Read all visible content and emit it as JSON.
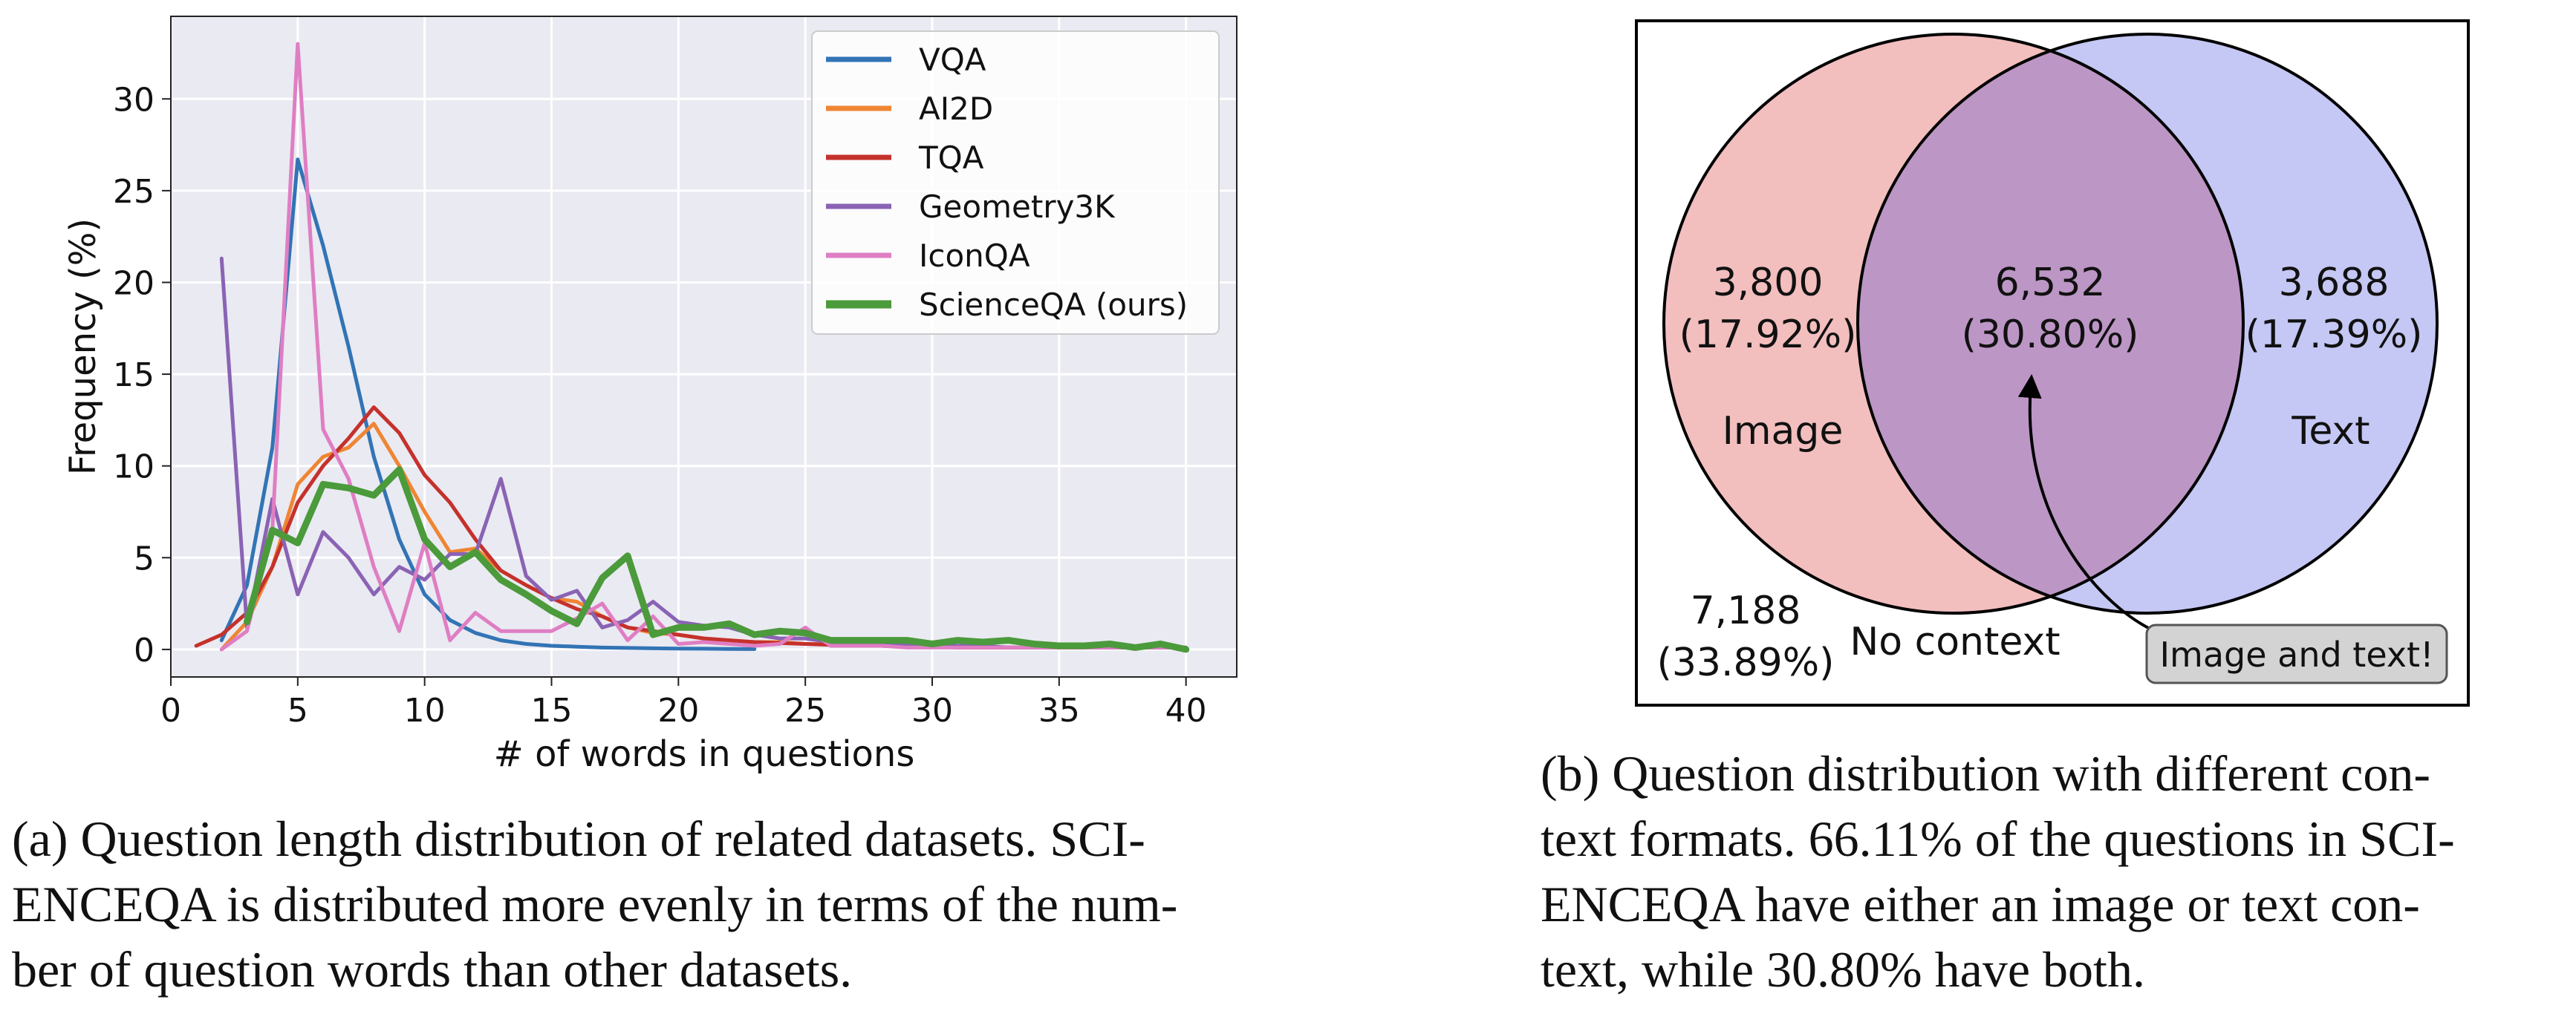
{
  "figure_a": {
    "caption_lines": [
      "(a) Question length distribution of related datasets. SCI-",
      "ENCEQA is distributed more evenly in terms of the num-",
      "ber of question words than other datasets."
    ]
  },
  "figure_b": {
    "caption_lines": [
      "(b) Question distribution with different con-",
      "text formats. 66.11% of the questions in SCI-",
      "ENCEQA have either an image or text con-",
      "text, while 30.80% have both."
    ]
  },
  "chart_data": [
    {
      "type": "line",
      "xlabel": "# of words in questions",
      "ylabel": "Frequency (%)",
      "xlim": [
        0,
        42
      ],
      "ylim": [
        -1.5,
        34.5
      ],
      "xticks": [
        0,
        5,
        10,
        15,
        20,
        25,
        30,
        35,
        40
      ],
      "yticks": [
        0,
        5,
        10,
        15,
        20,
        25,
        30
      ],
      "grid": true,
      "legend_position": "top-right",
      "series": [
        {
          "name": "VQA",
          "color": "#3274b5",
          "width": 5,
          "x": [
            2,
            3,
            4,
            5,
            6,
            7,
            8,
            9,
            10,
            11,
            12,
            13,
            14,
            15,
            16,
            17,
            18,
            19,
            20,
            21,
            22,
            23
          ],
          "y": [
            0.5,
            3.5,
            11,
            26.7,
            22,
            16.5,
            10.5,
            6,
            3,
            1.6,
            0.9,
            0.5,
            0.3,
            0.2,
            0.15,
            0.1,
            0.08,
            0.06,
            0.05,
            0.04,
            0.03,
            0.02
          ]
        },
        {
          "name": "AI2D",
          "color": "#ef8533",
          "width": 5,
          "x": [
            2,
            3,
            4,
            5,
            6,
            7,
            8,
            9,
            10,
            11,
            12,
            13,
            14,
            15,
            16,
            17,
            18,
            19,
            20,
            21,
            22,
            23,
            24,
            25,
            26,
            27,
            28,
            29,
            30,
            31,
            32,
            33,
            34,
            35,
            36,
            37,
            38,
            39,
            40
          ],
          "y": [
            0,
            1.5,
            4.5,
            9,
            10.5,
            11,
            12.3,
            10,
            7.5,
            5.3,
            5.5,
            4.3,
            3.5,
            2.8,
            2.6,
            1.8,
            1.2,
            0.9,
            0.8,
            0.6,
            0.5,
            0.4,
            0.4,
            0.3,
            0.3,
            0.2,
            0.2,
            0.2,
            0.2,
            0.1,
            0.1,
            0.1,
            0.1,
            0.1,
            0.1,
            0.1,
            0.1,
            0.1,
            0.1
          ]
        },
        {
          "name": "TQA",
          "color": "#c5312c",
          "width": 5,
          "x": [
            1,
            2,
            3,
            4,
            5,
            6,
            7,
            8,
            9,
            10,
            11,
            12,
            13,
            14,
            15,
            16,
            17,
            18,
            19,
            20,
            21,
            22,
            23,
            24,
            25,
            26,
            27,
            28,
            29,
            30,
            31,
            32,
            33,
            34,
            35,
            36,
            37,
            38,
            39,
            40
          ],
          "y": [
            0.2,
            0.8,
            2,
            4.5,
            8,
            10,
            11.5,
            13.2,
            11.8,
            9.5,
            8,
            6,
            4.3,
            3.5,
            2.8,
            2.2,
            1.8,
            1.2,
            1,
            0.8,
            0.6,
            0.5,
            0.4,
            0.35,
            0.3,
            0.25,
            0.2,
            0.2,
            0.15,
            0.15,
            0.1,
            0.1,
            0.1,
            0.1,
            0.1,
            0.1,
            0.1,
            0.1,
            0.1,
            0.1
          ]
        },
        {
          "name": "Geometry3K",
          "color": "#8a63b4",
          "width": 5,
          "x": [
            2,
            3,
            4,
            5,
            6,
            7,
            8,
            9,
            10,
            11,
            12,
            13,
            14,
            15,
            16,
            17,
            18,
            19,
            20,
            21,
            22,
            23,
            24,
            25,
            26,
            27,
            28,
            29,
            30,
            31,
            32,
            33,
            34,
            35,
            36,
            37,
            38,
            39,
            40
          ],
          "y": [
            21.3,
            1.2,
            8.2,
            3,
            6.4,
            5,
            3,
            4.5,
            3.8,
            5.2,
            5.2,
            9.3,
            4,
            2.7,
            3.2,
            1.2,
            1.6,
            2.6,
            1.5,
            1.3,
            1.2,
            0.8,
            0.6,
            0.6,
            0.4,
            0.3,
            0.3,
            0.3,
            0.2,
            0.2,
            0.2,
            0.1,
            0.1,
            0.1,
            0.1,
            0.1,
            0.1,
            0.1,
            0.1
          ]
        },
        {
          "name": "IconQA",
          "color": "#df7ec3",
          "width": 5,
          "x": [
            2,
            3,
            4,
            5,
            6,
            7,
            8,
            9,
            10,
            11,
            12,
            13,
            14,
            15,
            16,
            17,
            18,
            19,
            20,
            21,
            22,
            23,
            24,
            25,
            26,
            27,
            28,
            29,
            30,
            31,
            32,
            33,
            34,
            35,
            36,
            37,
            38,
            39,
            40
          ],
          "y": [
            0,
            1,
            6.5,
            33,
            12,
            9.3,
            4.5,
            1,
            5.8,
            0.5,
            2,
            1,
            1,
            1,
            1.7,
            2.5,
            0.5,
            1.8,
            0.3,
            0.4,
            0.3,
            0.2,
            0.3,
            1.2,
            0.2,
            0.2,
            0.2,
            0.1,
            0.1,
            0.1,
            0.1,
            0.1,
            0.1,
            0.1,
            0.1,
            0.1,
            0.1,
            0.1,
            0.1
          ]
        },
        {
          "name": "ScienceQA (ours)",
          "color": "#4b9a3b",
          "width": 9,
          "x": [
            3,
            4,
            5,
            6,
            7,
            8,
            9,
            10,
            11,
            12,
            13,
            14,
            15,
            16,
            17,
            18,
            19,
            20,
            21,
            22,
            23,
            24,
            25,
            26,
            27,
            28,
            29,
            30,
            31,
            32,
            33,
            34,
            35,
            36,
            37,
            38,
            39,
            40
          ],
          "y": [
            1.5,
            6.5,
            5.8,
            9,
            8.8,
            8.4,
            9.8,
            6,
            4.5,
            5.3,
            3.8,
            3,
            2.1,
            1.4,
            3.9,
            5.1,
            0.8,
            1.2,
            1.2,
            1.4,
            0.8,
            1,
            0.9,
            0.5,
            0.5,
            0.5,
            0.5,
            0.3,
            0.5,
            0.4,
            0.5,
            0.3,
            0.2,
            0.2,
            0.3,
            0.1,
            0.3,
            0
          ]
        }
      ]
    },
    {
      "type": "venn",
      "sets": [
        {
          "label": "Image",
          "only_count": "3,800",
          "only_pct": "(17.92%)",
          "color": "#f2bebe"
        },
        {
          "label": "Text",
          "only_count": "3,688",
          "only_pct": "(17.39%)",
          "color": "#c5c7f4"
        }
      ],
      "intersection": {
        "count": "6,532",
        "pct": "(30.80%)",
        "color": "#bc96c5"
      },
      "outside": {
        "count": "7,188",
        "pct": "(33.89%)",
        "label": "No context"
      },
      "callout": "Image and text!"
    }
  ]
}
